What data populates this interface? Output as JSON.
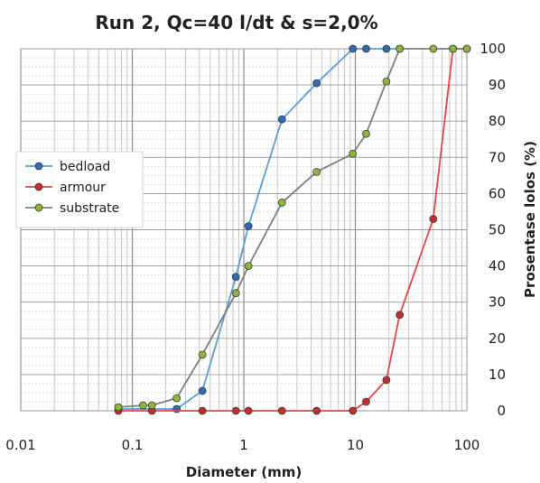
{
  "chart_data": {
    "type": "line",
    "title": "Run 2, Qc=40 l/dt & s=2,0%",
    "xlabel": "Diameter (mm)",
    "ylabel": "Prosentase lolos (%)",
    "x_scale": "log",
    "xlim": [
      0.01,
      100
    ],
    "ylim": [
      0,
      100
    ],
    "x_tick_labels": [
      "0.01",
      "0.1",
      "1",
      "10",
      "100"
    ],
    "x_tick_values": [
      0.01,
      0.1,
      1,
      10,
      100
    ],
    "y_tick_labels": [
      "0",
      "10",
      "20",
      "30",
      "40",
      "50",
      "60",
      "70",
      "80",
      "90",
      "100"
    ],
    "y_tick_values": [
      0,
      10,
      20,
      30,
      40,
      50,
      60,
      70,
      80,
      90,
      100
    ],
    "grid": true,
    "legend_position": "left",
    "series": [
      {
        "name": "bedload",
        "color": "#5a9fd6",
        "marker_fill": "#2e6db2",
        "points": [
          {
            "x": 0.075,
            "y": 0.5
          },
          {
            "x": 0.25,
            "y": 0.5
          },
          {
            "x": 0.425,
            "y": 5.5
          },
          {
            "x": 0.85,
            "y": 37
          },
          {
            "x": 1.1,
            "y": 51
          },
          {
            "x": 2.2,
            "y": 80.5
          },
          {
            "x": 4.5,
            "y": 90.5
          },
          {
            "x": 9.5,
            "y": 100
          },
          {
            "x": 12.5,
            "y": 100
          },
          {
            "x": 19,
            "y": 100
          },
          {
            "x": 25,
            "y": 100
          }
        ]
      },
      {
        "name": "armour",
        "color": "#e04848",
        "marker_fill": "#c0302e",
        "points": [
          {
            "x": 0.075,
            "y": 0
          },
          {
            "x": 0.15,
            "y": 0
          },
          {
            "x": 0.425,
            "y": 0
          },
          {
            "x": 0.85,
            "y": 0
          },
          {
            "x": 1.1,
            "y": 0
          },
          {
            "x": 2.2,
            "y": 0
          },
          {
            "x": 4.5,
            "y": 0
          },
          {
            "x": 9.5,
            "y": 0
          },
          {
            "x": 12.5,
            "y": 2.5
          },
          {
            "x": 19,
            "y": 8.5
          },
          {
            "x": 25,
            "y": 26.5
          },
          {
            "x": 50,
            "y": 53
          },
          {
            "x": 75,
            "y": 100
          },
          {
            "x": 100,
            "y": 100
          }
        ]
      },
      {
        "name": "substrate",
        "color": "#7f7f7f",
        "marker_fill": "#8fb63a",
        "points": [
          {
            "x": 0.075,
            "y": 1
          },
          {
            "x": 0.125,
            "y": 1.5
          },
          {
            "x": 0.15,
            "y": 1.5
          },
          {
            "x": 0.25,
            "y": 3.5
          },
          {
            "x": 0.425,
            "y": 15.5
          },
          {
            "x": 0.85,
            "y": 32.5
          },
          {
            "x": 1.1,
            "y": 40
          },
          {
            "x": 2.2,
            "y": 57.5
          },
          {
            "x": 4.5,
            "y": 66
          },
          {
            "x": 9.5,
            "y": 71
          },
          {
            "x": 12.5,
            "y": 76.5
          },
          {
            "x": 19,
            "y": 91
          },
          {
            "x": 25,
            "y": 100
          },
          {
            "x": 50,
            "y": 100
          },
          {
            "x": 75,
            "y": 100
          },
          {
            "x": 100,
            "y": 100
          }
        ]
      }
    ]
  }
}
